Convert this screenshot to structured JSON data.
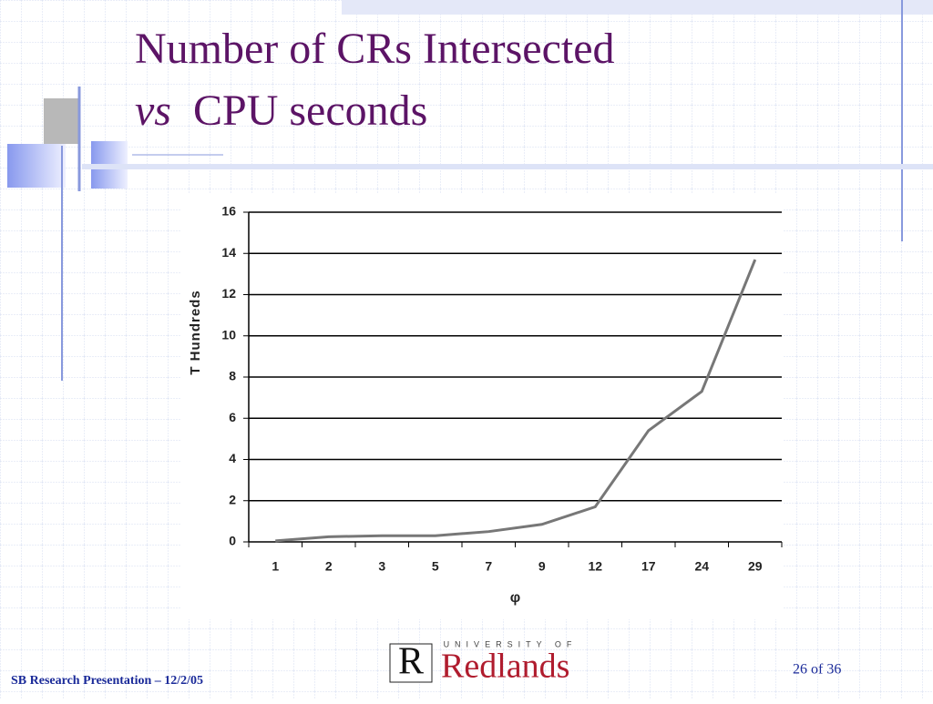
{
  "slide": {
    "title_line1": "Number of CRs Intersected",
    "title_italic": "vs",
    "title_rest": "CPU seconds",
    "footer": "SB Research Presentation – 12/2/05",
    "page": "26 of 36",
    "logo": {
      "letter": "R",
      "top": "UNIVERSITY OF",
      "name": "Redlands"
    }
  },
  "chart_data": {
    "type": "line",
    "y_label": "T Hundreds",
    "x_label": "φ",
    "categories": [
      "1",
      "2",
      "3",
      "5",
      "7",
      "9",
      "12",
      "17",
      "24",
      "29"
    ],
    "values": [
      0.05,
      0.25,
      0.3,
      0.3,
      0.5,
      0.85,
      1.7,
      5.4,
      7.3,
      13.7
    ],
    "color": "#777777",
    "ylim": [
      0,
      16
    ],
    "yticks": [
      0,
      2,
      4,
      6,
      8,
      10,
      12,
      14,
      16
    ],
    "grid": true
  }
}
